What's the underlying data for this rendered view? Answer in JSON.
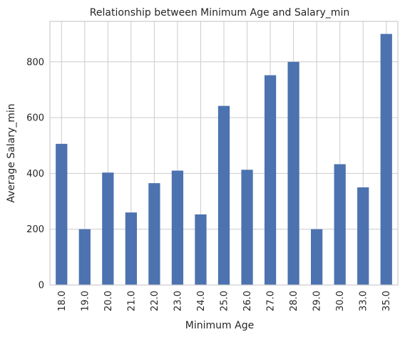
{
  "chart_data": {
    "type": "bar",
    "title": "Relationship between Minimum Age and Salary_min",
    "xlabel": "Minimum Age",
    "ylabel": "Average Salary_min",
    "categories": [
      "18.0",
      "19.0",
      "20.0",
      "21.0",
      "22.0",
      "23.0",
      "24.0",
      "25.0",
      "26.0",
      "27.0",
      "28.0",
      "29.0",
      "30.0",
      "33.0",
      "35.0"
    ],
    "values": [
      506,
      200,
      403,
      260,
      365,
      410,
      253,
      642,
      413,
      752,
      800,
      200,
      433,
      350,
      900
    ],
    "ylim": [
      0,
      945
    ],
    "yticks": [
      0,
      200,
      400,
      600,
      800
    ],
    "grid": true,
    "bar_color": "#4c72b0",
    "grid_color": "#cccccc",
    "background": "#ffffff"
  }
}
